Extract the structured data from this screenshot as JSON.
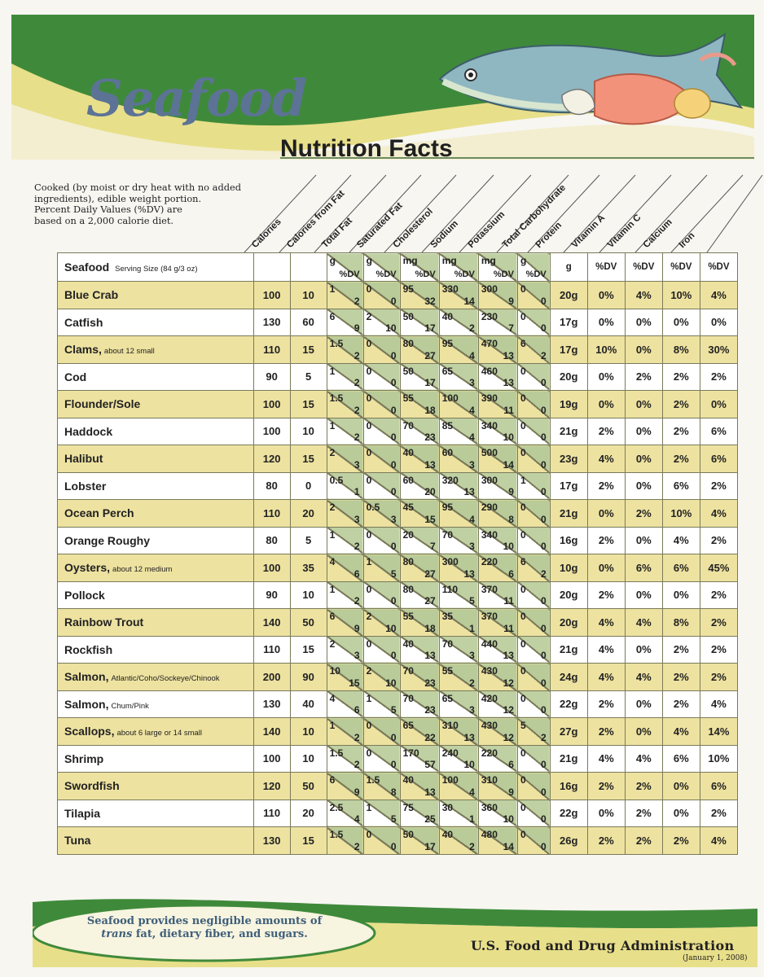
{
  "header": {
    "title": "Seafood",
    "subtitle": "Nutrition Facts"
  },
  "intro": [
    "Cooked (by moist or dry heat with no added",
    "ingredients), edible weight portion.",
    "Percent Daily Values (%DV) are",
    "based on a 2,000 calorie diet."
  ],
  "columns": [
    "Calories",
    "Calories from Fat",
    "Total Fat",
    "Saturated Fat",
    "Cholesterol",
    "Sodium",
    "Potassium",
    "Total Carbohydrate",
    "Protein",
    "Vitamin A",
    "Vitamin C",
    "Calcium",
    "Iron"
  ],
  "units_row": {
    "label": "Seafood",
    "serving": "Serving Size (84 g/3 oz)",
    "split_units": [
      {
        "top": "g",
        "bottom": "%DV"
      },
      {
        "top": "g",
        "bottom": "%DV"
      },
      {
        "top": "mg",
        "bottom": "%DV"
      },
      {
        "top": "mg",
        "bottom": "%DV"
      },
      {
        "top": "mg",
        "bottom": "%DV"
      },
      {
        "top": "g",
        "bottom": "%DV"
      }
    ],
    "plain_units": [
      "g",
      "%DV",
      "%DV",
      "%DV",
      "%DV"
    ]
  },
  "rows": [
    {
      "name": "Blue Crab",
      "sub": "",
      "cal": "100",
      "calfat": "10",
      "fat": [
        "1",
        "2"
      ],
      "sat": [
        "0",
        "0"
      ],
      "chol": [
        "95",
        "32"
      ],
      "sod": [
        "330",
        "14"
      ],
      "pot": [
        "300",
        "9"
      ],
      "carb": [
        "0",
        "0"
      ],
      "protein": "20g",
      "vita": "0%",
      "vitc": "4%",
      "calcium": "10%",
      "iron": "4%"
    },
    {
      "name": "Catfish",
      "sub": "",
      "cal": "130",
      "calfat": "60",
      "fat": [
        "6",
        "9"
      ],
      "sat": [
        "2",
        "10"
      ],
      "chol": [
        "50",
        "17"
      ],
      "sod": [
        "40",
        "2"
      ],
      "pot": [
        "230",
        "7"
      ],
      "carb": [
        "0",
        "0"
      ],
      "protein": "17g",
      "vita": "0%",
      "vitc": "0%",
      "calcium": "0%",
      "iron": "0%"
    },
    {
      "name": "Clams,",
      "sub": "about 12 small",
      "cal": "110",
      "calfat": "15",
      "fat": [
        "1.5",
        "2"
      ],
      "sat": [
        "0",
        "0"
      ],
      "chol": [
        "80",
        "27"
      ],
      "sod": [
        "95",
        "4"
      ],
      "pot": [
        "470",
        "13"
      ],
      "carb": [
        "6",
        "2"
      ],
      "protein": "17g",
      "vita": "10%",
      "vitc": "0%",
      "calcium": "8%",
      "iron": "30%"
    },
    {
      "name": "Cod",
      "sub": "",
      "cal": "90",
      "calfat": "5",
      "fat": [
        "1",
        "2"
      ],
      "sat": [
        "0",
        "0"
      ],
      "chol": [
        "50",
        "17"
      ],
      "sod": [
        "65",
        "3"
      ],
      "pot": [
        "460",
        "13"
      ],
      "carb": [
        "0",
        "0"
      ],
      "protein": "20g",
      "vita": "0%",
      "vitc": "2%",
      "calcium": "2%",
      "iron": "2%"
    },
    {
      "name": "Flounder/Sole",
      "sub": "",
      "cal": "100",
      "calfat": "15",
      "fat": [
        "1.5",
        "2"
      ],
      "sat": [
        "0",
        "0"
      ],
      "chol": [
        "55",
        "18"
      ],
      "sod": [
        "100",
        "4"
      ],
      "pot": [
        "390",
        "11"
      ],
      "carb": [
        "0",
        "0"
      ],
      "protein": "19g",
      "vita": "0%",
      "vitc": "0%",
      "calcium": "2%",
      "iron": "0%"
    },
    {
      "name": "Haddock",
      "sub": "",
      "cal": "100",
      "calfat": "10",
      "fat": [
        "1",
        "2"
      ],
      "sat": [
        "0",
        "0"
      ],
      "chol": [
        "70",
        "23"
      ],
      "sod": [
        "85",
        "4"
      ],
      "pot": [
        "340",
        "10"
      ],
      "carb": [
        "0",
        "0"
      ],
      "protein": "21g",
      "vita": "2%",
      "vitc": "0%",
      "calcium": "2%",
      "iron": "6%"
    },
    {
      "name": "Halibut",
      "sub": "",
      "cal": "120",
      "calfat": "15",
      "fat": [
        "2",
        "3"
      ],
      "sat": [
        "0",
        "0"
      ],
      "chol": [
        "40",
        "13"
      ],
      "sod": [
        "60",
        "3"
      ],
      "pot": [
        "500",
        "14"
      ],
      "carb": [
        "0",
        "0"
      ],
      "protein": "23g",
      "vita": "4%",
      "vitc": "0%",
      "calcium": "2%",
      "iron": "6%"
    },
    {
      "name": "Lobster",
      "sub": "",
      "cal": "80",
      "calfat": "0",
      "fat": [
        "0.5",
        "1"
      ],
      "sat": [
        "0",
        "0"
      ],
      "chol": [
        "60",
        "20"
      ],
      "sod": [
        "320",
        "13"
      ],
      "pot": [
        "300",
        "9"
      ],
      "carb": [
        "1",
        "0"
      ],
      "protein": "17g",
      "vita": "2%",
      "vitc": "0%",
      "calcium": "6%",
      "iron": "2%"
    },
    {
      "name": "Ocean Perch",
      "sub": "",
      "cal": "110",
      "calfat": "20",
      "fat": [
        "2",
        "3"
      ],
      "sat": [
        "0.5",
        "3"
      ],
      "chol": [
        "45",
        "15"
      ],
      "sod": [
        "95",
        "4"
      ],
      "pot": [
        "290",
        "8"
      ],
      "carb": [
        "0",
        "0"
      ],
      "protein": "21g",
      "vita": "0%",
      "vitc": "2%",
      "calcium": "10%",
      "iron": "4%"
    },
    {
      "name": "Orange Roughy",
      "sub": "",
      "cal": "80",
      "calfat": "5",
      "fat": [
        "1",
        "2"
      ],
      "sat": [
        "0",
        "0"
      ],
      "chol": [
        "20",
        "7"
      ],
      "sod": [
        "70",
        "3"
      ],
      "pot": [
        "340",
        "10"
      ],
      "carb": [
        "0",
        "0"
      ],
      "protein": "16g",
      "vita": "2%",
      "vitc": "0%",
      "calcium": "4%",
      "iron": "2%"
    },
    {
      "name": "Oysters,",
      "sub": "about 12 medium",
      "cal": "100",
      "calfat": "35",
      "fat": [
        "4",
        "6"
      ],
      "sat": [
        "1",
        "5"
      ],
      "chol": [
        "80",
        "27"
      ],
      "sod": [
        "300",
        "13"
      ],
      "pot": [
        "220",
        "6"
      ],
      "carb": [
        "6",
        "2"
      ],
      "protein": "10g",
      "vita": "0%",
      "vitc": "6%",
      "calcium": "6%",
      "iron": "45%"
    },
    {
      "name": "Pollock",
      "sub": "",
      "cal": "90",
      "calfat": "10",
      "fat": [
        "1",
        "2"
      ],
      "sat": [
        "0",
        "0"
      ],
      "chol": [
        "80",
        "27"
      ],
      "sod": [
        "110",
        "5"
      ],
      "pot": [
        "370",
        "11"
      ],
      "carb": [
        "0",
        "0"
      ],
      "protein": "20g",
      "vita": "2%",
      "vitc": "0%",
      "calcium": "0%",
      "iron": "2%"
    },
    {
      "name": "Rainbow Trout",
      "sub": "",
      "cal": "140",
      "calfat": "50",
      "fat": [
        "6",
        "9"
      ],
      "sat": [
        "2",
        "10"
      ],
      "chol": [
        "55",
        "18"
      ],
      "sod": [
        "35",
        "1"
      ],
      "pot": [
        "370",
        "11"
      ],
      "carb": [
        "0",
        "0"
      ],
      "protein": "20g",
      "vita": "4%",
      "vitc": "4%",
      "calcium": "8%",
      "iron": "2%"
    },
    {
      "name": "Rockfish",
      "sub": "",
      "cal": "110",
      "calfat": "15",
      "fat": [
        "2",
        "3"
      ],
      "sat": [
        "0",
        "0"
      ],
      "chol": [
        "40",
        "13"
      ],
      "sod": [
        "70",
        "3"
      ],
      "pot": [
        "440",
        "13"
      ],
      "carb": [
        "0",
        "0"
      ],
      "protein": "21g",
      "vita": "4%",
      "vitc": "0%",
      "calcium": "2%",
      "iron": "2%"
    },
    {
      "name": "Salmon,",
      "sub": "Atlantic/Coho/Sockeye/Chinook",
      "cal": "200",
      "calfat": "90",
      "fat": [
        "10",
        "15"
      ],
      "sat": [
        "2",
        "10"
      ],
      "chol": [
        "70",
        "23"
      ],
      "sod": [
        "55",
        "2"
      ],
      "pot": [
        "430",
        "12"
      ],
      "carb": [
        "0",
        "0"
      ],
      "protein": "24g",
      "vita": "4%",
      "vitc": "4%",
      "calcium": "2%",
      "iron": "2%"
    },
    {
      "name": "Salmon,",
      "sub": "Chum/Pink",
      "cal": "130",
      "calfat": "40",
      "fat": [
        "4",
        "6"
      ],
      "sat": [
        "1",
        "5"
      ],
      "chol": [
        "70",
        "23"
      ],
      "sod": [
        "65",
        "3"
      ],
      "pot": [
        "420",
        "12"
      ],
      "carb": [
        "0",
        "0"
      ],
      "protein": "22g",
      "vita": "2%",
      "vitc": "0%",
      "calcium": "2%",
      "iron": "4%"
    },
    {
      "name": "Scallops,",
      "sub": "about 6 large or 14 small",
      "cal": "140",
      "calfat": "10",
      "fat": [
        "1",
        "2"
      ],
      "sat": [
        "0",
        "0"
      ],
      "chol": [
        "65",
        "22"
      ],
      "sod": [
        "310",
        "13"
      ],
      "pot": [
        "430",
        "12"
      ],
      "carb": [
        "5",
        "2"
      ],
      "protein": "27g",
      "vita": "2%",
      "vitc": "0%",
      "calcium": "4%",
      "iron": "14%"
    },
    {
      "name": "Shrimp",
      "sub": "",
      "cal": "100",
      "calfat": "10",
      "fat": [
        "1.5",
        "2"
      ],
      "sat": [
        "0",
        "0"
      ],
      "chol": [
        "170",
        "57"
      ],
      "sod": [
        "240",
        "10"
      ],
      "pot": [
        "220",
        "6"
      ],
      "carb": [
        "0",
        "0"
      ],
      "protein": "21g",
      "vita": "4%",
      "vitc": "4%",
      "calcium": "6%",
      "iron": "10%"
    },
    {
      "name": "Swordfish",
      "sub": "",
      "cal": "120",
      "calfat": "50",
      "fat": [
        "6",
        "9"
      ],
      "sat": [
        "1.5",
        "8"
      ],
      "chol": [
        "40",
        "13"
      ],
      "sod": [
        "100",
        "4"
      ],
      "pot": [
        "310",
        "9"
      ],
      "carb": [
        "0",
        "0"
      ],
      "protein": "16g",
      "vita": "2%",
      "vitc": "2%",
      "calcium": "0%",
      "iron": "6%"
    },
    {
      "name": "Tilapia",
      "sub": "",
      "cal": "110",
      "calfat": "20",
      "fat": [
        "2.5",
        "4"
      ],
      "sat": [
        "1",
        "5"
      ],
      "chol": [
        "75",
        "25"
      ],
      "sod": [
        "30",
        "1"
      ],
      "pot": [
        "360",
        "10"
      ],
      "carb": [
        "0",
        "0"
      ],
      "protein": "22g",
      "vita": "0%",
      "vitc": "2%",
      "calcium": "0%",
      "iron": "2%"
    },
    {
      "name": "Tuna",
      "sub": "",
      "cal": "130",
      "calfat": "15",
      "fat": [
        "1.5",
        "2"
      ],
      "sat": [
        "0",
        "0"
      ],
      "chol": [
        "50",
        "17"
      ],
      "sod": [
        "40",
        "2"
      ],
      "pot": [
        "480",
        "14"
      ],
      "carb": [
        "0",
        "0"
      ],
      "protein": "26g",
      "vita": "2%",
      "vitc": "2%",
      "calcium": "2%",
      "iron": "4%"
    }
  ],
  "footer": {
    "note_pre": "Seafood provides negligible amounts of",
    "note_em": "trans",
    "note_post": "fat, dietary fiber, and sugars.",
    "agency": "U.S. Food and Drug Administration",
    "date": "(January 1, 2008)"
  },
  "colors": {
    "yellow": "#ede2a0",
    "green": "#3f8a3a",
    "title_blue": "#5c7396"
  }
}
